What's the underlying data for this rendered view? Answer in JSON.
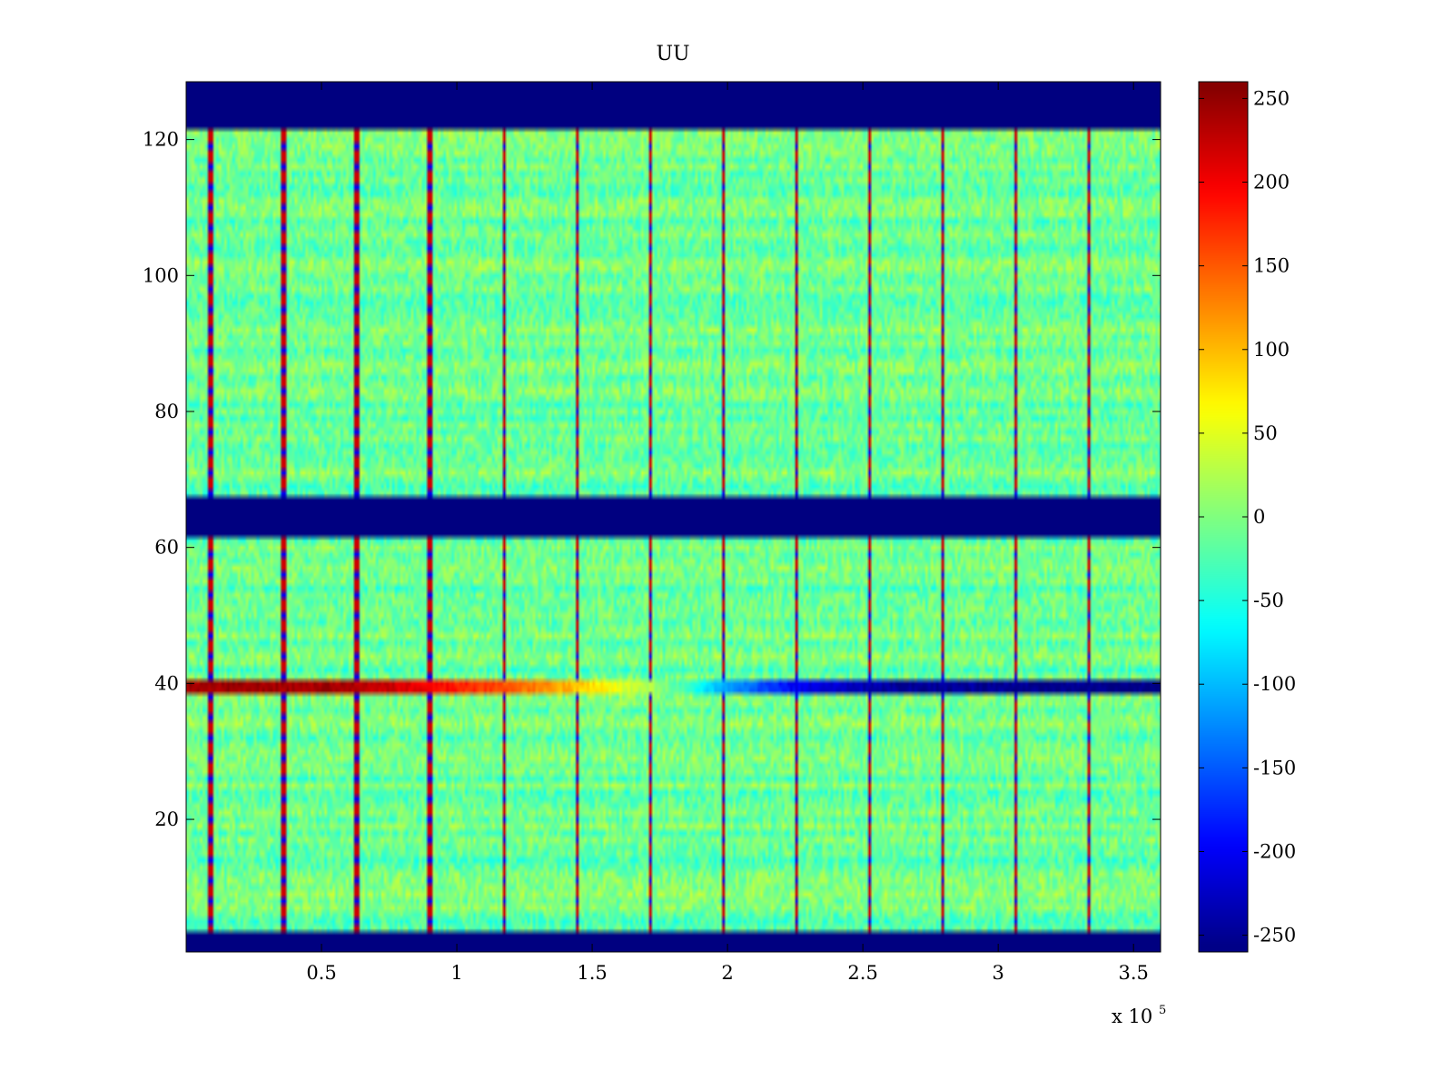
{
  "chart_data": {
    "type": "heatmap",
    "title": "UU",
    "xlabel": "",
    "ylabel": "",
    "x_multiplier_label": "x 10",
    "x_multiplier_exponent": "5",
    "xlim": [
      0,
      360000
    ],
    "ylim": [
      0.5,
      128.5
    ],
    "x_ticks": [
      {
        "value": 50000,
        "label": "0.5"
      },
      {
        "value": 100000,
        "label": "1"
      },
      {
        "value": 150000,
        "label": "1.5"
      },
      {
        "value": 200000,
        "label": "2"
      },
      {
        "value": 250000,
        "label": "2.5"
      },
      {
        "value": 300000,
        "label": "3"
      },
      {
        "value": 350000,
        "label": "3.5"
      }
    ],
    "y_ticks": [
      {
        "value": 20,
        "label": "20"
      },
      {
        "value": 40,
        "label": "40"
      },
      {
        "value": 60,
        "label": "60"
      },
      {
        "value": 80,
        "label": "80"
      },
      {
        "value": 100,
        "label": "100"
      },
      {
        "value": 120,
        "label": "120"
      }
    ],
    "colormap": "jet",
    "clim": [
      -260,
      260
    ],
    "colorbar_ticks": [
      {
        "value": 250,
        "label": "250"
      },
      {
        "value": 200,
        "label": "200"
      },
      {
        "value": 150,
        "label": "150"
      },
      {
        "value": 100,
        "label": "100"
      },
      {
        "value": 50,
        "label": "50"
      },
      {
        "value": 0,
        "label": "0"
      },
      {
        "value": -50,
        "label": "-50"
      },
      {
        "value": -100,
        "label": "-100"
      },
      {
        "value": -150,
        "label": "-150"
      },
      {
        "value": -200,
        "label": "-200"
      },
      {
        "value": -250,
        "label": "-250"
      }
    ],
    "masked_row_ranges": [
      [
        0.5,
        3.5
      ],
      [
        61.5,
        67.5
      ],
      [
        121.5,
        128.5
      ]
    ],
    "masked_value": -260,
    "background_value_mean": -10,
    "vertical_event_x": [
      9000,
      36000,
      63000,
      90000,
      117500,
      144500,
      171500,
      198500,
      225500,
      252500,
      279500,
      306500,
      333500
    ],
    "drifting_row": {
      "rows": [
        38.5,
        40.5
      ],
      "points": [
        {
          "x": 0,
          "value": 245
        },
        {
          "x": 60000,
          "value": 240
        },
        {
          "x": 90000,
          "value": 200
        },
        {
          "x": 120000,
          "value": 150
        },
        {
          "x": 150000,
          "value": 80
        },
        {
          "x": 175000,
          "value": 10
        },
        {
          "x": 195000,
          "value": -90
        },
        {
          "x": 225000,
          "value": -200
        },
        {
          "x": 260000,
          "value": -245
        },
        {
          "x": 360000,
          "value": -255
        }
      ]
    }
  }
}
